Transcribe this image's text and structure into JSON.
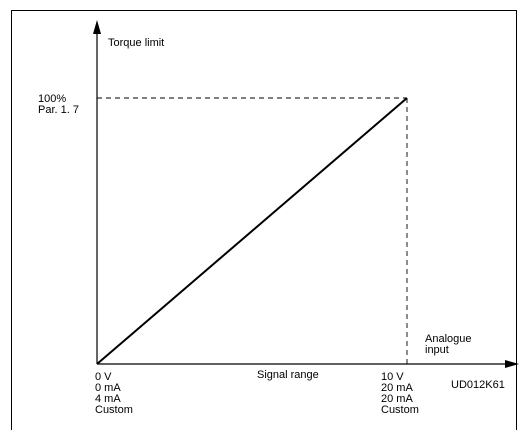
{
  "y_axis_label": "Torque limit",
  "y_top": {
    "line1": "100%",
    "line2": "Par. 1. 7"
  },
  "x_axis_label": {
    "line1": "Analogue",
    "line2": "input"
  },
  "signal_range_label": "Signal range",
  "x_start": {
    "l1": "0 V",
    "l2": "0 mA",
    "l3": "4 mA",
    "l4": "Custom"
  },
  "x_end": {
    "l1": "10 V",
    "l2": "20 mA",
    "l3": "20 mA",
    "l4": "Custom"
  },
  "figure_code": "UD012K61"
}
